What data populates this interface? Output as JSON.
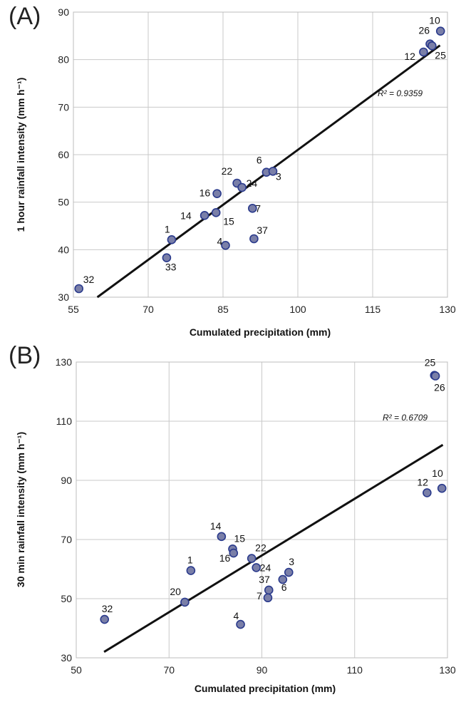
{
  "chart_data": [
    {
      "panel": "(A)",
      "type": "scatter",
      "xlabel": "Cumulated precipitation (mm)",
      "ylabel": "1 hour rainfall intensity (mm h⁻¹)",
      "xlim": [
        55,
        130
      ],
      "ylim": [
        30,
        90
      ],
      "xticks": [
        "55",
        "70",
        "85",
        "100",
        "115",
        "130"
      ],
      "yticks": [
        "30",
        "40",
        "50",
        "60",
        "70",
        "80",
        "90"
      ],
      "grid": true,
      "marker_color": "#7a7fa8",
      "marker_edge": "#2a3a8c",
      "points": [
        {
          "label": "10",
          "x": 128.6,
          "y": 86.0
        },
        {
          "label": "26",
          "x": 126.5,
          "y": 83.3
        },
        {
          "label": "25",
          "x": 126.9,
          "y": 82.9
        },
        {
          "label": "12",
          "x": 125.2,
          "y": 81.6
        },
        {
          "label": "6",
          "x": 93.7,
          "y": 56.3
        },
        {
          "label": "3",
          "x": 95.0,
          "y": 56.5
        },
        {
          "label": "22",
          "x": 87.8,
          "y": 54.0
        },
        {
          "label": "24",
          "x": 88.8,
          "y": 53.1
        },
        {
          "label": "16",
          "x": 83.8,
          "y": 51.8
        },
        {
          "label": "7",
          "x": 90.9,
          "y": 48.7
        },
        {
          "label": "15",
          "x": 83.6,
          "y": 47.8
        },
        {
          "label": "14",
          "x": 81.3,
          "y": 47.2
        },
        {
          "label": "1",
          "x": 74.7,
          "y": 42.1
        },
        {
          "label": "37",
          "x": 91.2,
          "y": 42.3
        },
        {
          "label": "4",
          "x": 85.5,
          "y": 40.9
        },
        {
          "label": "33",
          "x": 73.7,
          "y": 38.3
        },
        {
          "label": "32",
          "x": 56.1,
          "y": 31.8
        }
      ],
      "trendline": {
        "x": [
          59.8,
          128.5
        ],
        "y": [
          30.0,
          83.0
        ]
      },
      "annotation": "R² = 0.9359"
    },
    {
      "panel": "(B)",
      "type": "scatter",
      "xlabel": "Cumulated precipitation (mm)",
      "ylabel": "30 min rainfall intensity (mm h⁻¹)",
      "xlim": [
        50,
        130
      ],
      "ylim": [
        30,
        130
      ],
      "xticks": [
        "50",
        "70",
        "90",
        "110",
        "130"
      ],
      "yticks": [
        "30",
        "50",
        "70",
        "90",
        "110",
        "130"
      ],
      "grid": true,
      "marker_color": "#7a7fa8",
      "marker_edge": "#2a3a8c",
      "points": [
        {
          "label": "25",
          "x": 127.2,
          "y": 125.5
        },
        {
          "label": "26",
          "x": 127.4,
          "y": 125.3
        },
        {
          "label": "10",
          "x": 128.8,
          "y": 87.3
        },
        {
          "label": "12",
          "x": 125.6,
          "y": 85.8
        },
        {
          "label": "14",
          "x": 81.3,
          "y": 71.0
        },
        {
          "label": "15",
          "x": 83.7,
          "y": 66.8
        },
        {
          "label": "16",
          "x": 83.9,
          "y": 65.4
        },
        {
          "label": "22",
          "x": 87.8,
          "y": 63.6
        },
        {
          "label": "24",
          "x": 88.8,
          "y": 60.5
        },
        {
          "label": "1",
          "x": 74.7,
          "y": 59.5
        },
        {
          "label": "3",
          "x": 95.8,
          "y": 58.9
        },
        {
          "label": "6",
          "x": 94.5,
          "y": 56.5
        },
        {
          "label": "37",
          "x": 91.5,
          "y": 52.9
        },
        {
          "label": "7",
          "x": 91.3,
          "y": 50.3
        },
        {
          "label": "20",
          "x": 73.4,
          "y": 48.8
        },
        {
          "label": "32",
          "x": 56.1,
          "y": 43.0
        },
        {
          "label": "4",
          "x": 85.4,
          "y": 41.3
        }
      ],
      "trendline": {
        "x": [
          56.0,
          129.0
        ],
        "y": [
          32.0,
          102.0
        ]
      },
      "annotation": "R² = 0.6709"
    }
  ]
}
